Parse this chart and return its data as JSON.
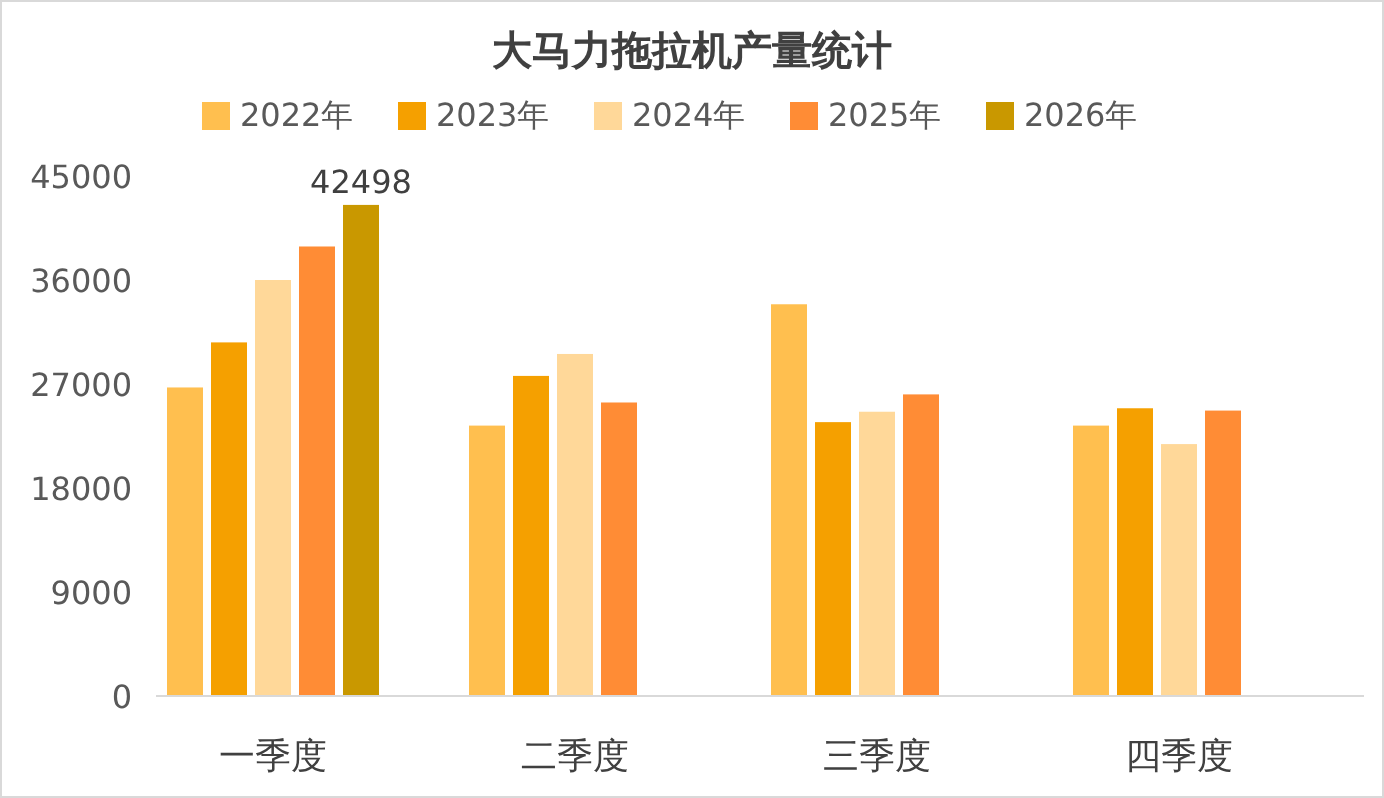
{
  "chart_data": {
    "type": "bar",
    "title": "大马力拖拉机产量统计",
    "categories": [
      "一季度",
      "二季度",
      "三季度",
      "四季度"
    ],
    "series": [
      {
        "name": "2022年",
        "color": "#ffbf4f",
        "values": [
          26700,
          23400,
          33900,
          23400
        ]
      },
      {
        "name": "2023年",
        "color": "#f5a000",
        "values": [
          30600,
          27700,
          23700,
          24900
        ]
      },
      {
        "name": "2024年",
        "color": "#ffd899",
        "values": [
          36000,
          29600,
          24600,
          21800
        ]
      },
      {
        "name": "2025年",
        "color": "#ff8c35",
        "values": [
          38900,
          25400,
          26100,
          24700
        ]
      },
      {
        "name": "2026年",
        "color": "#c99800",
        "values": [
          42498,
          null,
          null,
          null
        ],
        "value_labels": [
          "42498",
          null,
          null,
          null
        ]
      }
    ],
    "ylim": [
      0,
      45000
    ],
    "yticks": [
      0,
      9000,
      18000,
      27000,
      36000,
      45000
    ],
    "legend": "top"
  }
}
